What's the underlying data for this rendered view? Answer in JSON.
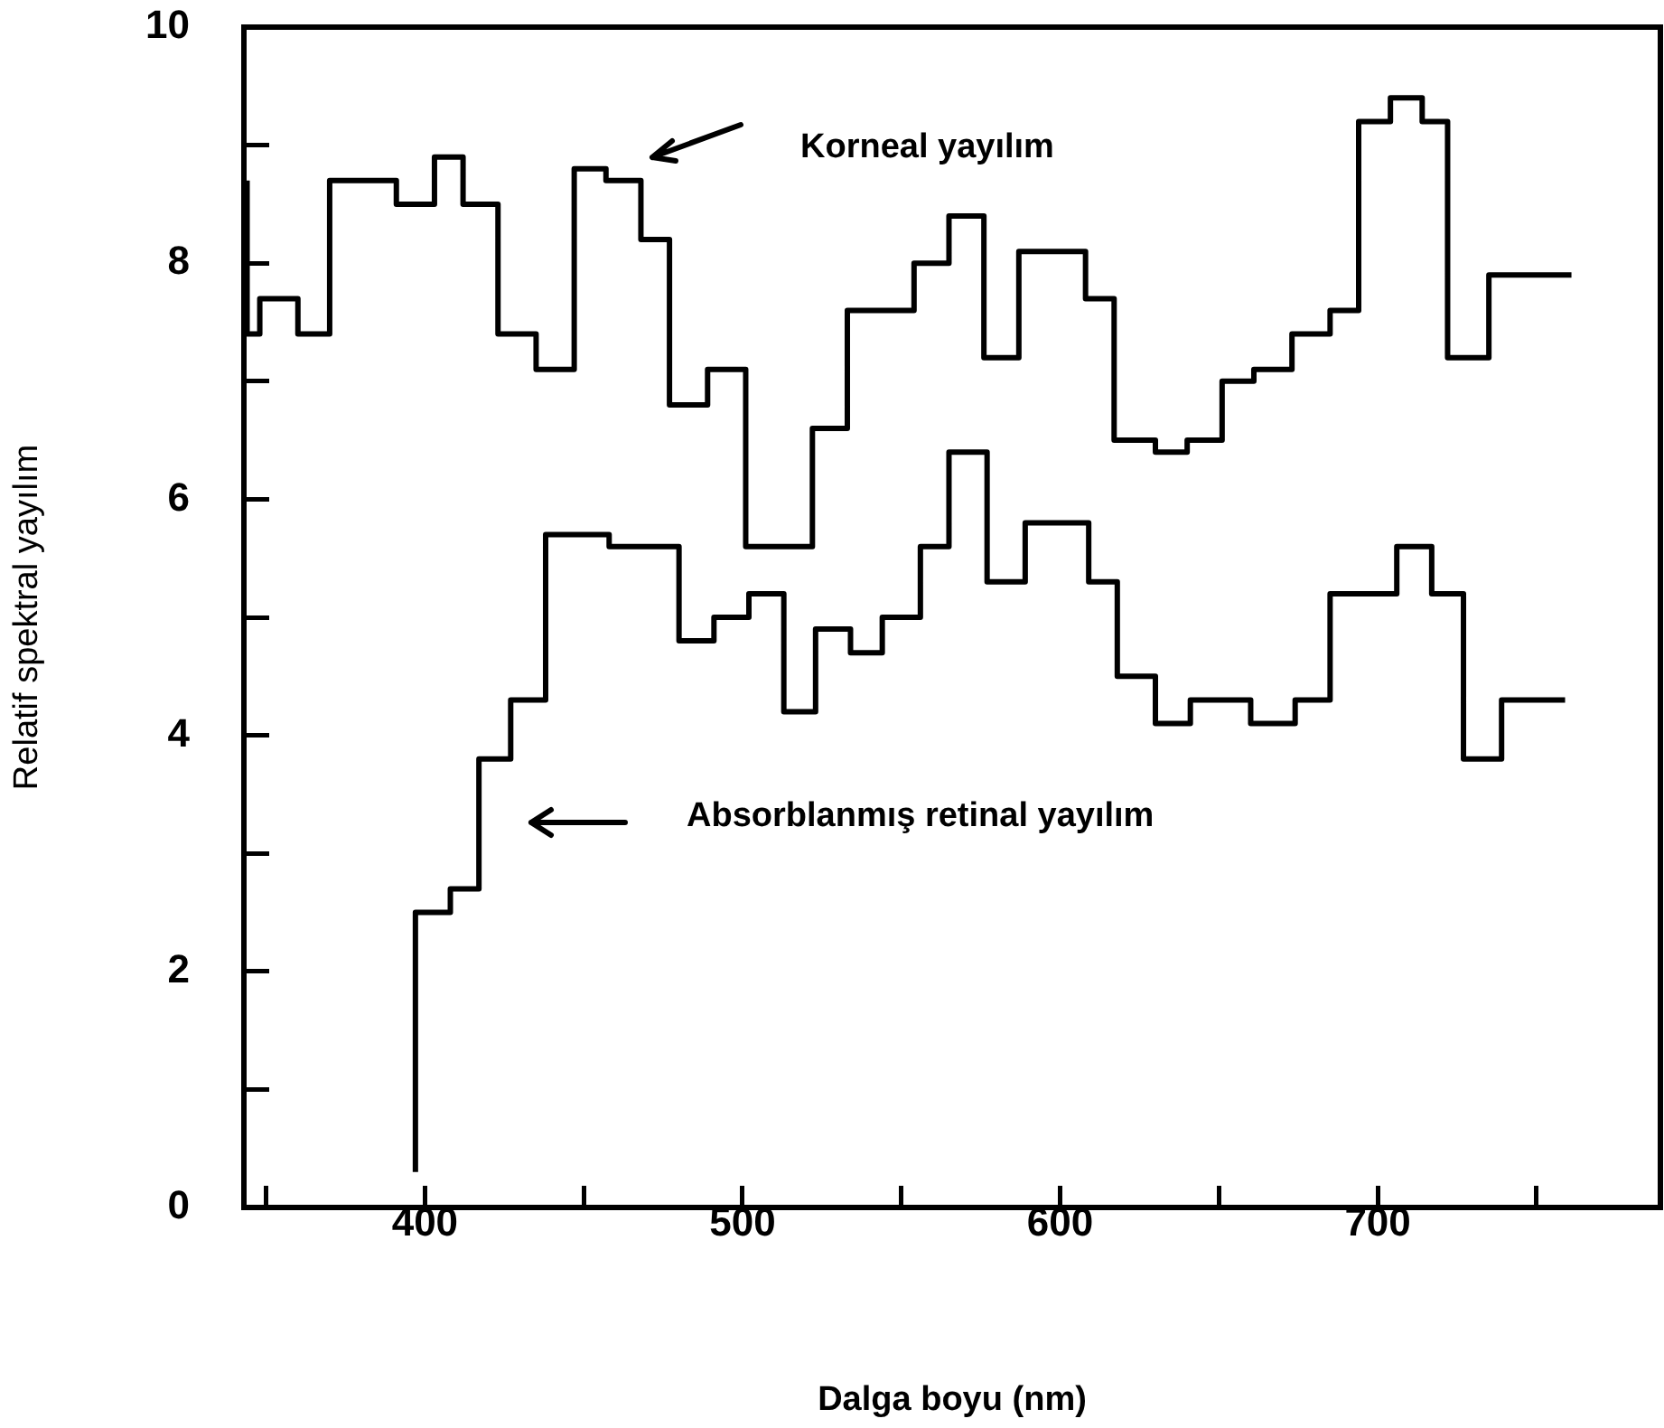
{
  "chart_data": {
    "type": "step",
    "xlabel": "Dalga boyu (nm)",
    "ylabel": "Relatif spektral yayılım",
    "xlim": [
      343,
      789
    ],
    "ylim": [
      0,
      10
    ],
    "xticks": [
      {
        "value": 350,
        "label": null
      },
      400,
      {
        "value": 450,
        "label": null
      },
      500,
      {
        "value": 550,
        "label": null
      },
      600,
      {
        "value": 650,
        "label": null
      },
      700,
      {
        "value": 750,
        "label": null
      }
    ],
    "yticks": [
      0,
      {
        "value": 1,
        "label": null
      },
      2,
      {
        "value": 3,
        "label": null
      },
      4,
      {
        "value": 5,
        "label": null
      },
      6,
      {
        "value": 7,
        "label": null
      },
      8,
      {
        "value": 9,
        "label": null
      },
      10
    ],
    "grid": false,
    "legend": false,
    "line_style": "solid",
    "marker": "none",
    "series": [
      {
        "color": "#000000",
        "x": [
          344,
          348,
          360,
          370,
          391,
          403,
          412,
          423,
          435,
          447,
          457,
          468,
          477,
          489,
          501,
          522,
          533,
          554,
          565,
          576,
          587,
          608,
          617,
          630,
          640,
          651,
          661,
          673,
          685,
          694,
          704,
          714,
          722,
          735,
          745,
          761
        ],
        "values": [
          8.7,
          7.4,
          7.7,
          7.4,
          8.7,
          8.5,
          8.9,
          8.5,
          7.4,
          7.1,
          8.8,
          8.7,
          8.2,
          6.8,
          7.1,
          5.6,
          6.6,
          7.6,
          8,
          8.4,
          7.2,
          8.1,
          7.7,
          6.5,
          6.4,
          6.5,
          7,
          7.1,
          7.4,
          7.6,
          9.2,
          9.4,
          9.2,
          7.2,
          7.9,
          7.9
        ]
      },
      {
        "color": "#000000",
        "x": [
          397,
          408,
          417,
          427,
          438,
          458,
          480,
          491,
          502,
          513,
          523,
          534,
          544,
          556,
          565,
          577,
          589,
          609,
          618,
          630,
          641,
          660,
          674,
          685,
          706,
          717,
          727,
          739,
          748,
          759
        ],
        "values": [
          0.3,
          2.5,
          2.7,
          3.8,
          4.3,
          5.7,
          5.6,
          4.8,
          5,
          5.2,
          4.2,
          4.9,
          4.7,
          5,
          5.6,
          6.4,
          5.3,
          5.8,
          5.3,
          4.5,
          4.1,
          4.3,
          4.1,
          4.3,
          5.2,
          5.6,
          5.2,
          3.8,
          4.3,
          4.3
        ]
      }
    ],
    "annotations": [
      "Korneal yayılım",
      "Absorblanmış retinal yayılım"
    ]
  }
}
